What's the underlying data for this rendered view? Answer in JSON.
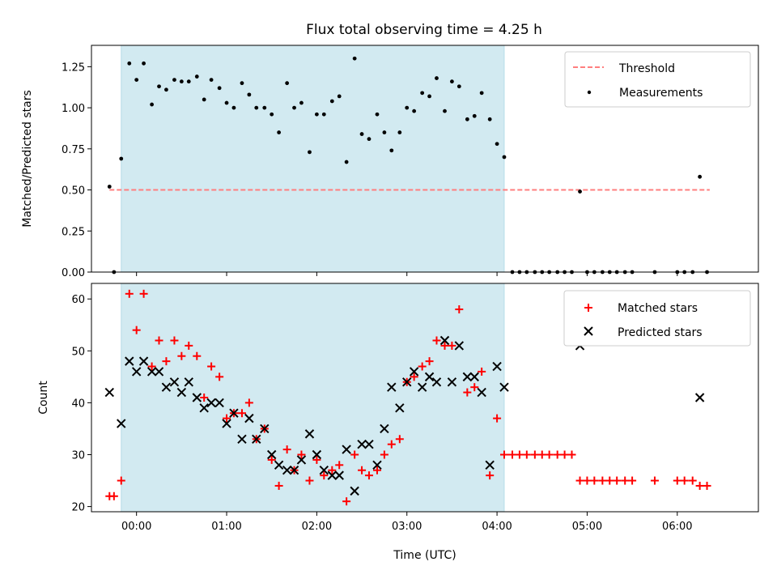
{
  "chart_data": [
    {
      "type": "scatter",
      "title": "Flux total observing time = 4.25 h",
      "xlabel": "",
      "ylabel": "Matched/Predicted stars",
      "xlim": [
        -0.5,
        6.9
      ],
      "ylim": [
        0,
        1.38
      ],
      "yticks": [
        0.0,
        0.25,
        0.5,
        0.75,
        1.0,
        1.25
      ],
      "ytick_labels": [
        "0.00",
        "0.25",
        "0.50",
        "0.75",
        "1.00",
        "1.25"
      ],
      "shaded_span": [
        -0.17,
        4.08
      ],
      "shade_color": "#add8e6",
      "legend_position": "upper right",
      "threshold": {
        "name": "Threshold",
        "y": 0.5,
        "x_range": [
          -0.3,
          6.36
        ],
        "color": "#ff7f7f"
      },
      "series": [
        {
          "name": "Measurements",
          "color": "#000000",
          "marker": "dot",
          "x": [
            -0.3,
            -0.25,
            -0.17,
            -0.08,
            0.0,
            0.08,
            0.17,
            0.25,
            0.33,
            0.42,
            0.5,
            0.58,
            0.67,
            0.75,
            0.83,
            0.92,
            1.0,
            1.08,
            1.17,
            1.25,
            1.33,
            1.42,
            1.5,
            1.58,
            1.67,
            1.75,
            1.83,
            1.92,
            2.0,
            2.08,
            2.17,
            2.25,
            2.33,
            2.42,
            2.5,
            2.58,
            2.67,
            2.75,
            2.83,
            2.92,
            3.0,
            3.08,
            3.17,
            3.25,
            3.33,
            3.42,
            3.5,
            3.58,
            3.67,
            3.75,
            3.83,
            3.92,
            4.0,
            4.08,
            4.17,
            4.25,
            4.33,
            4.42,
            4.5,
            4.58,
            4.67,
            4.75,
            4.83,
            4.92,
            5.0,
            5.08,
            5.17,
            5.25,
            5.33,
            5.42,
            5.5,
            5.75,
            6.0,
            6.08,
            6.17,
            6.25,
            6.33
          ],
          "y": [
            0.52,
            0.0,
            0.69,
            1.27,
            1.17,
            1.27,
            1.02,
            1.13,
            1.11,
            1.17,
            1.16,
            1.16,
            1.19,
            1.05,
            1.17,
            1.12,
            1.03,
            1.0,
            1.15,
            1.08,
            1.0,
            1.0,
            0.96,
            0.85,
            1.15,
            1.0,
            1.03,
            0.73,
            0.96,
            0.96,
            1.04,
            1.07,
            0.67,
            1.3,
            0.84,
            0.81,
            0.96,
            0.85,
            0.74,
            0.85,
            1.0,
            0.98,
            1.09,
            1.07,
            1.18,
            0.98,
            1.16,
            1.13,
            0.93,
            0.95,
            1.09,
            0.93,
            0.78,
            0.7,
            0.0,
            0.0,
            0.0,
            0.0,
            0.0,
            0.0,
            0.0,
            0.0,
            0.0,
            0.49,
            0.0,
            0.0,
            0.0,
            0.0,
            0.0,
            0.0,
            0.0,
            0.0,
            0.0,
            0.0,
            0.0,
            0.58,
            0.0
          ]
        }
      ]
    },
    {
      "type": "scatter",
      "title": "",
      "xlabel": "Time (UTC)",
      "ylabel": "Count",
      "xlim": [
        -0.5,
        6.9
      ],
      "ylim": [
        19,
        63
      ],
      "yticks": [
        20,
        30,
        40,
        50,
        60
      ],
      "xticks": [
        0,
        1,
        2,
        3,
        4,
        5,
        6
      ],
      "xtick_labels": [
        "00:00",
        "01:00",
        "02:00",
        "03:00",
        "04:00",
        "05:00",
        "06:00"
      ],
      "shaded_span": [
        -0.17,
        4.08
      ],
      "shade_color": "#add8e6",
      "legend_position": "upper right",
      "series": [
        {
          "name": "Matched stars",
          "color": "#ff0000",
          "marker": "plus",
          "x": [
            -0.3,
            -0.25,
            -0.17,
            -0.08,
            0.0,
            0.08,
            0.17,
            0.25,
            0.33,
            0.42,
            0.5,
            0.58,
            0.67,
            0.75,
            0.83,
            0.92,
            1.0,
            1.08,
            1.17,
            1.25,
            1.33,
            1.42,
            1.5,
            1.58,
            1.67,
            1.75,
            1.83,
            1.92,
            2.0,
            2.08,
            2.17,
            2.25,
            2.33,
            2.42,
            2.5,
            2.58,
            2.67,
            2.75,
            2.83,
            2.92,
            3.0,
            3.08,
            3.17,
            3.25,
            3.33,
            3.42,
            3.5,
            3.58,
            3.67,
            3.75,
            3.83,
            3.92,
            4.0,
            4.08,
            4.17,
            4.25,
            4.33,
            4.42,
            4.5,
            4.58,
            4.67,
            4.75,
            4.83,
            4.92,
            5.0,
            5.08,
            5.17,
            5.25,
            5.33,
            5.42,
            5.5,
            5.75,
            6.0,
            6.08,
            6.17,
            6.25,
            6.33
          ],
          "y": [
            22,
            22,
            25,
            61,
            54,
            61,
            47,
            52,
            48,
            52,
            49,
            51,
            49,
            41,
            47,
            45,
            37,
            38,
            38,
            40,
            33,
            35,
            29,
            24,
            31,
            27,
            30,
            25,
            29,
            26,
            27,
            28,
            21,
            30,
            27,
            26,
            27,
            30,
            32,
            33,
            44,
            45,
            47,
            48,
            52,
            51,
            51,
            58,
            42,
            43,
            46,
            26,
            37,
            30,
            30,
            30,
            30,
            30,
            30,
            30,
            30,
            30,
            30,
            25,
            25,
            25,
            25,
            25,
            25,
            25,
            25,
            25,
            25,
            25,
            25,
            24,
            24
          ]
        },
        {
          "name": "Predicted stars",
          "color": "#000000",
          "marker": "x",
          "x": [
            -0.3,
            -0.17,
            -0.08,
            0.0,
            0.08,
            0.17,
            0.25,
            0.33,
            0.42,
            0.5,
            0.58,
            0.67,
            0.75,
            0.83,
            0.92,
            1.0,
            1.08,
            1.17,
            1.25,
            1.33,
            1.42,
            1.5,
            1.58,
            1.67,
            1.75,
            1.83,
            1.92,
            2.0,
            2.08,
            2.17,
            2.25,
            2.33,
            2.42,
            2.5,
            2.58,
            2.67,
            2.75,
            2.83,
            2.92,
            3.0,
            3.08,
            3.17,
            3.25,
            3.33,
            3.42,
            3.5,
            3.58,
            3.67,
            3.75,
            3.83,
            3.92,
            4.0,
            4.08,
            4.92,
            6.25
          ],
          "y": [
            42,
            36,
            48,
            46,
            48,
            46,
            46,
            43,
            44,
            42,
            44,
            41,
            39,
            40,
            40,
            36,
            38,
            33,
            37,
            33,
            35,
            30,
            28,
            27,
            27,
            29,
            34,
            30,
            27,
            26,
            26,
            31,
            23,
            32,
            32,
            28,
            35,
            43,
            39,
            44,
            46,
            43,
            45,
            44,
            52,
            44,
            51,
            45,
            45,
            42,
            28,
            47,
            43,
            51,
            41
          ]
        }
      ]
    }
  ]
}
